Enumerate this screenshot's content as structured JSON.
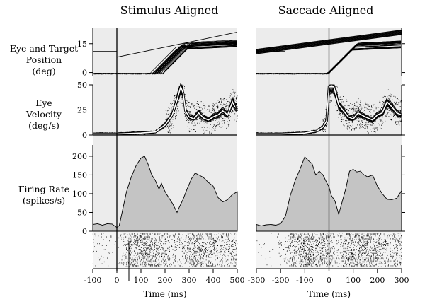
{
  "figure": {
    "left_title": "Stimulus Aligned",
    "right_title": "Saccade Aligned",
    "row_labels": {
      "position": [
        "Eye and Target",
        "Position",
        "(deg)"
      ],
      "velocity": [
        "Eye",
        "Velocity",
        "(deg/s)"
      ],
      "firing": [
        "Firing Rate",
        "(spikes/s)"
      ]
    },
    "colors": {
      "panel_bg": "#ececec",
      "fill": "#c4c4c4",
      "line": "#000000",
      "highlight": "#ffffff"
    }
  },
  "chart_data": [
    {
      "id": "stimulus-aligned",
      "type": "line",
      "title": "Stimulus Aligned",
      "xlabel": "Time (ms)",
      "x_ticks": [
        -100,
        0,
        100,
        200,
        300,
        400,
        500
      ],
      "xlim": [
        -100,
        500
      ],
      "event_line_x": 0,
      "grid": false,
      "panels": {
        "position": {
          "ylabel": "Eye and Target Position (deg)",
          "ylim": [
            -2,
            23
          ],
          "yticks": [
            0,
            15
          ],
          "target_step": {
            "before": 11,
            "at_step": 8,
            "end_value": 21,
            "step_x": 0
          },
          "eye_onset_x": 170,
          "eye_final": 13
        },
        "velocity": {
          "ylabel": "Eye Velocity (deg/s)",
          "ylim": [
            0,
            50
          ],
          "yticks": [
            0,
            25,
            50
          ],
          "mean_trace": {
            "x": [
              -100,
              0,
              100,
              160,
              200,
              230,
              250,
              265,
              275,
              285,
              300,
              320,
              340,
              360,
              380,
              400,
              420,
              440,
              460,
              480,
              490
            ],
            "y": [
              1,
              1,
              2,
              3,
              10,
              20,
              35,
              48,
              42,
              24,
              18,
              16,
              22,
              17,
              15,
              18,
              20,
              24,
              20,
              33,
              28
            ]
          }
        },
        "firing": {
          "ylabel": "Firing Rate (spikes/s)",
          "ylim": [
            0,
            230
          ],
          "yticks": [
            0,
            50,
            100,
            150,
            200
          ],
          "x": [
            -100,
            -80,
            -60,
            -40,
            -20,
            0,
            10,
            20,
            40,
            60,
            80,
            100,
            115,
            130,
            145,
            160,
            175,
            185,
            195,
            205,
            215,
            230,
            250,
            260,
            275,
            290,
            310,
            325,
            340,
            355,
            365,
            380,
            400,
            420,
            440,
            460,
            480,
            500
          ],
          "y": [
            18,
            20,
            16,
            20,
            19,
            10,
            15,
            45,
            105,
            145,
            175,
            195,
            200,
            178,
            150,
            135,
            112,
            128,
            112,
            100,
            90,
            75,
            50,
            65,
            85,
            110,
            140,
            155,
            150,
            145,
            140,
            130,
            120,
            90,
            78,
            84,
            98,
            105
          ]
        },
        "raster": {
          "present": true
        }
      }
    },
    {
      "id": "saccade-aligned",
      "type": "line",
      "title": "Saccade Aligned",
      "xlabel": "Time (ms)",
      "x_ticks": [
        -300,
        -200,
        -100,
        0,
        100,
        200,
        300
      ],
      "xlim": [
        -300,
        300
      ],
      "event_line_x": 0,
      "grid": false,
      "panels": {
        "position": {
          "ylabel": "Eye and Target Position (deg)",
          "ylim": [
            -2,
            23
          ],
          "yticks": [
            0,
            15
          ],
          "target_ramp": {
            "start_value": 11,
            "end_value": 21
          },
          "eye_onset_x": 0,
          "eye_final": 13
        },
        "velocity": {
          "ylabel": "Eye Velocity (deg/s)",
          "ylim": [
            0,
            50
          ],
          "yticks": [
            0,
            25,
            50
          ],
          "mean_trace": {
            "x": [
              -300,
              -200,
              -100,
              -50,
              -25,
              -10,
              0,
              20,
              40,
              60,
              80,
              100,
              120,
              150,
              180,
              200,
              220,
              240,
              260,
              280,
              300
            ],
            "y": [
              1,
              1,
              2,
              4,
              8,
              14,
              48,
              48,
              30,
              24,
              18,
              16,
              22,
              18,
              15,
              20,
              22,
              33,
              28,
              22,
              20
            ]
          }
        },
        "firing": {
          "ylabel": "Firing Rate (spikes/s)",
          "ylim": [
            0,
            230
          ],
          "yticks": [
            0,
            50,
            100,
            150,
            200
          ],
          "x": [
            -300,
            -280,
            -260,
            -240,
            -220,
            -200,
            -180,
            -160,
            -140,
            -120,
            -100,
            -85,
            -70,
            -55,
            -40,
            -25,
            -10,
            0,
            10,
            25,
            40,
            55,
            70,
            85,
            100,
            115,
            130,
            145,
            160,
            180,
            200,
            220,
            240,
            260,
            280,
            300
          ],
          "y": [
            18,
            14,
            17,
            18,
            16,
            20,
            40,
            95,
            135,
            165,
            198,
            188,
            180,
            150,
            160,
            150,
            130,
            118,
            95,
            80,
            45,
            80,
            115,
            160,
            165,
            158,
            160,
            150,
            145,
            150,
            120,
            100,
            85,
            84,
            88,
            108
          ]
        },
        "raster": {
          "present": true
        }
      }
    }
  ]
}
